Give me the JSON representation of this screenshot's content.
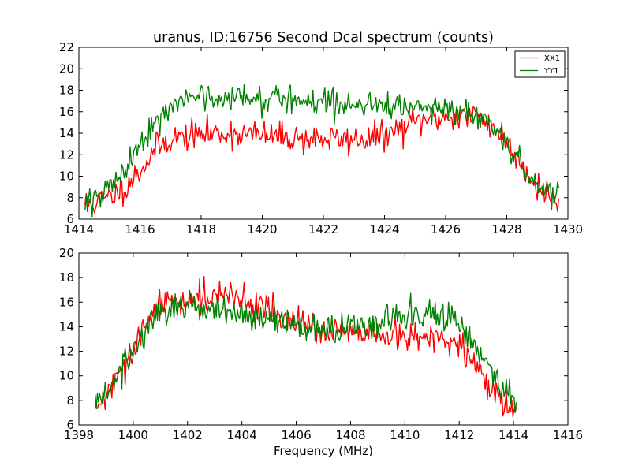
{
  "chart_data": [
    {
      "type": "line",
      "title": "uranus, ID:16756 Second Dcal spectrum (counts)",
      "xlabel": "",
      "ylabel": "",
      "xlim": [
        1414,
        1430
      ],
      "ylim": [
        6,
        22
      ],
      "xticks": [
        "1414",
        "1416",
        "1418",
        "1420",
        "1422",
        "1424",
        "1426",
        "1428",
        "1430"
      ],
      "yticks": [
        "6",
        "8",
        "10",
        "12",
        "14",
        "16",
        "18",
        "20",
        "22"
      ],
      "grid": false,
      "legend": {
        "placement": "top-right",
        "entries": [
          "XX1",
          "YY1"
        ]
      },
      "series": [
        {
          "name": "XX1",
          "color": "#ff0000",
          "x": [
            1414.2,
            1414.5,
            1415.0,
            1415.5,
            1416.0,
            1416.5,
            1417.0,
            1417.5,
            1418.0,
            1418.5,
            1419.0,
            1419.5,
            1420.0,
            1420.5,
            1421.0,
            1421.5,
            1422.0,
            1422.5,
            1423.0,
            1423.5,
            1424.0,
            1424.5,
            1425.0,
            1425.5,
            1426.0,
            1426.5,
            1427.0,
            1427.5,
            1428.0,
            1428.5,
            1429.0,
            1429.5,
            1429.7
          ],
          "y": [
            7.5,
            7.5,
            8.0,
            9.0,
            10.5,
            12.5,
            13.5,
            13.7,
            13.9,
            14.0,
            14.0,
            13.9,
            13.8,
            13.7,
            13.6,
            13.5,
            13.5,
            13.4,
            13.4,
            13.5,
            13.8,
            14.3,
            15.0,
            15.4,
            15.5,
            15.6,
            15.6,
            14.8,
            13.2,
            11.0,
            9.2,
            8.0,
            7.5
          ]
        },
        {
          "name": "YY1",
          "color": "#008000",
          "x": [
            1414.2,
            1414.5,
            1415.0,
            1415.5,
            1416.0,
            1416.5,
            1417.0,
            1417.5,
            1418.0,
            1418.5,
            1419.0,
            1419.5,
            1420.0,
            1420.5,
            1421.0,
            1421.5,
            1422.0,
            1422.5,
            1423.0,
            1423.5,
            1424.0,
            1424.5,
            1425.0,
            1425.5,
            1426.0,
            1426.5,
            1427.0,
            1427.5,
            1428.0,
            1428.5,
            1429.0,
            1429.5,
            1429.7
          ],
          "y": [
            7.8,
            8.2,
            9.0,
            10.5,
            12.8,
            15.0,
            16.5,
            17.0,
            17.2,
            17.3,
            17.4,
            17.4,
            17.3,
            17.2,
            17.1,
            17.0,
            17.0,
            16.9,
            16.8,
            16.7,
            16.6,
            16.5,
            16.4,
            16.4,
            16.4,
            16.3,
            16.0,
            15.0,
            13.3,
            11.0,
            9.3,
            8.2,
            7.8
          ]
        }
      ],
      "noise": 0.9,
      "samples": 400,
      "seed": 11
    },
    {
      "type": "line",
      "title": "",
      "xlabel": "Frequency (MHz)",
      "ylabel": "",
      "xlim": [
        1398,
        1416
      ],
      "ylim": [
        6,
        20
      ],
      "xticks": [
        "1398",
        "1400",
        "1402",
        "1404",
        "1406",
        "1408",
        "1410",
        "1412",
        "1414",
        "1416"
      ],
      "yticks": [
        "6",
        "8",
        "10",
        "12",
        "14",
        "16",
        "18",
        "20"
      ],
      "grid": false,
      "series": [
        {
          "name": "XX1",
          "color": "#ff0000",
          "x": [
            1398.6,
            1399.0,
            1399.5,
            1400.0,
            1400.5,
            1401.0,
            1401.5,
            1402.0,
            1402.5,
            1403.0,
            1403.5,
            1404.0,
            1404.5,
            1405.0,
            1405.5,
            1406.0,
            1406.5,
            1407.0,
            1407.5,
            1408.0,
            1408.5,
            1409.0,
            1409.5,
            1410.0,
            1410.5,
            1411.0,
            1411.5,
            1412.0,
            1412.5,
            1413.0,
            1413.5,
            1414.0,
            1414.1
          ],
          "y": [
            7.3,
            8.3,
            10.0,
            12.0,
            14.2,
            15.8,
            16.2,
            16.3,
            16.5,
            16.5,
            16.4,
            16.2,
            15.9,
            15.5,
            14.8,
            14.2,
            13.9,
            13.7,
            13.6,
            13.4,
            13.3,
            13.2,
            13.2,
            13.1,
            13.1,
            13.0,
            13.0,
            12.4,
            11.0,
            9.5,
            8.2,
            7.3,
            7.2
          ]
        },
        {
          "name": "YY1",
          "color": "#008000",
          "x": [
            1398.6,
            1399.0,
            1399.5,
            1400.0,
            1400.5,
            1401.0,
            1401.5,
            1402.0,
            1402.5,
            1403.0,
            1403.5,
            1404.0,
            1404.5,
            1405.0,
            1405.5,
            1406.0,
            1406.5,
            1407.0,
            1407.5,
            1408.0,
            1408.5,
            1409.0,
            1409.5,
            1410.0,
            1410.5,
            1411.0,
            1411.5,
            1412.0,
            1412.5,
            1413.0,
            1413.5,
            1414.0,
            1414.1
          ],
          "y": [
            7.6,
            8.6,
            10.2,
            12.2,
            14.0,
            15.3,
            15.6,
            15.6,
            15.5,
            15.4,
            15.2,
            15.0,
            14.8,
            14.6,
            14.3,
            14.0,
            13.8,
            13.7,
            13.8,
            13.9,
            14.0,
            14.3,
            14.6,
            14.8,
            15.0,
            15.0,
            14.8,
            14.2,
            12.8,
            11.0,
            9.3,
            8.0,
            7.6
          ]
        }
      ],
      "noise": 0.8,
      "samples": 380,
      "seed": 29
    }
  ]
}
